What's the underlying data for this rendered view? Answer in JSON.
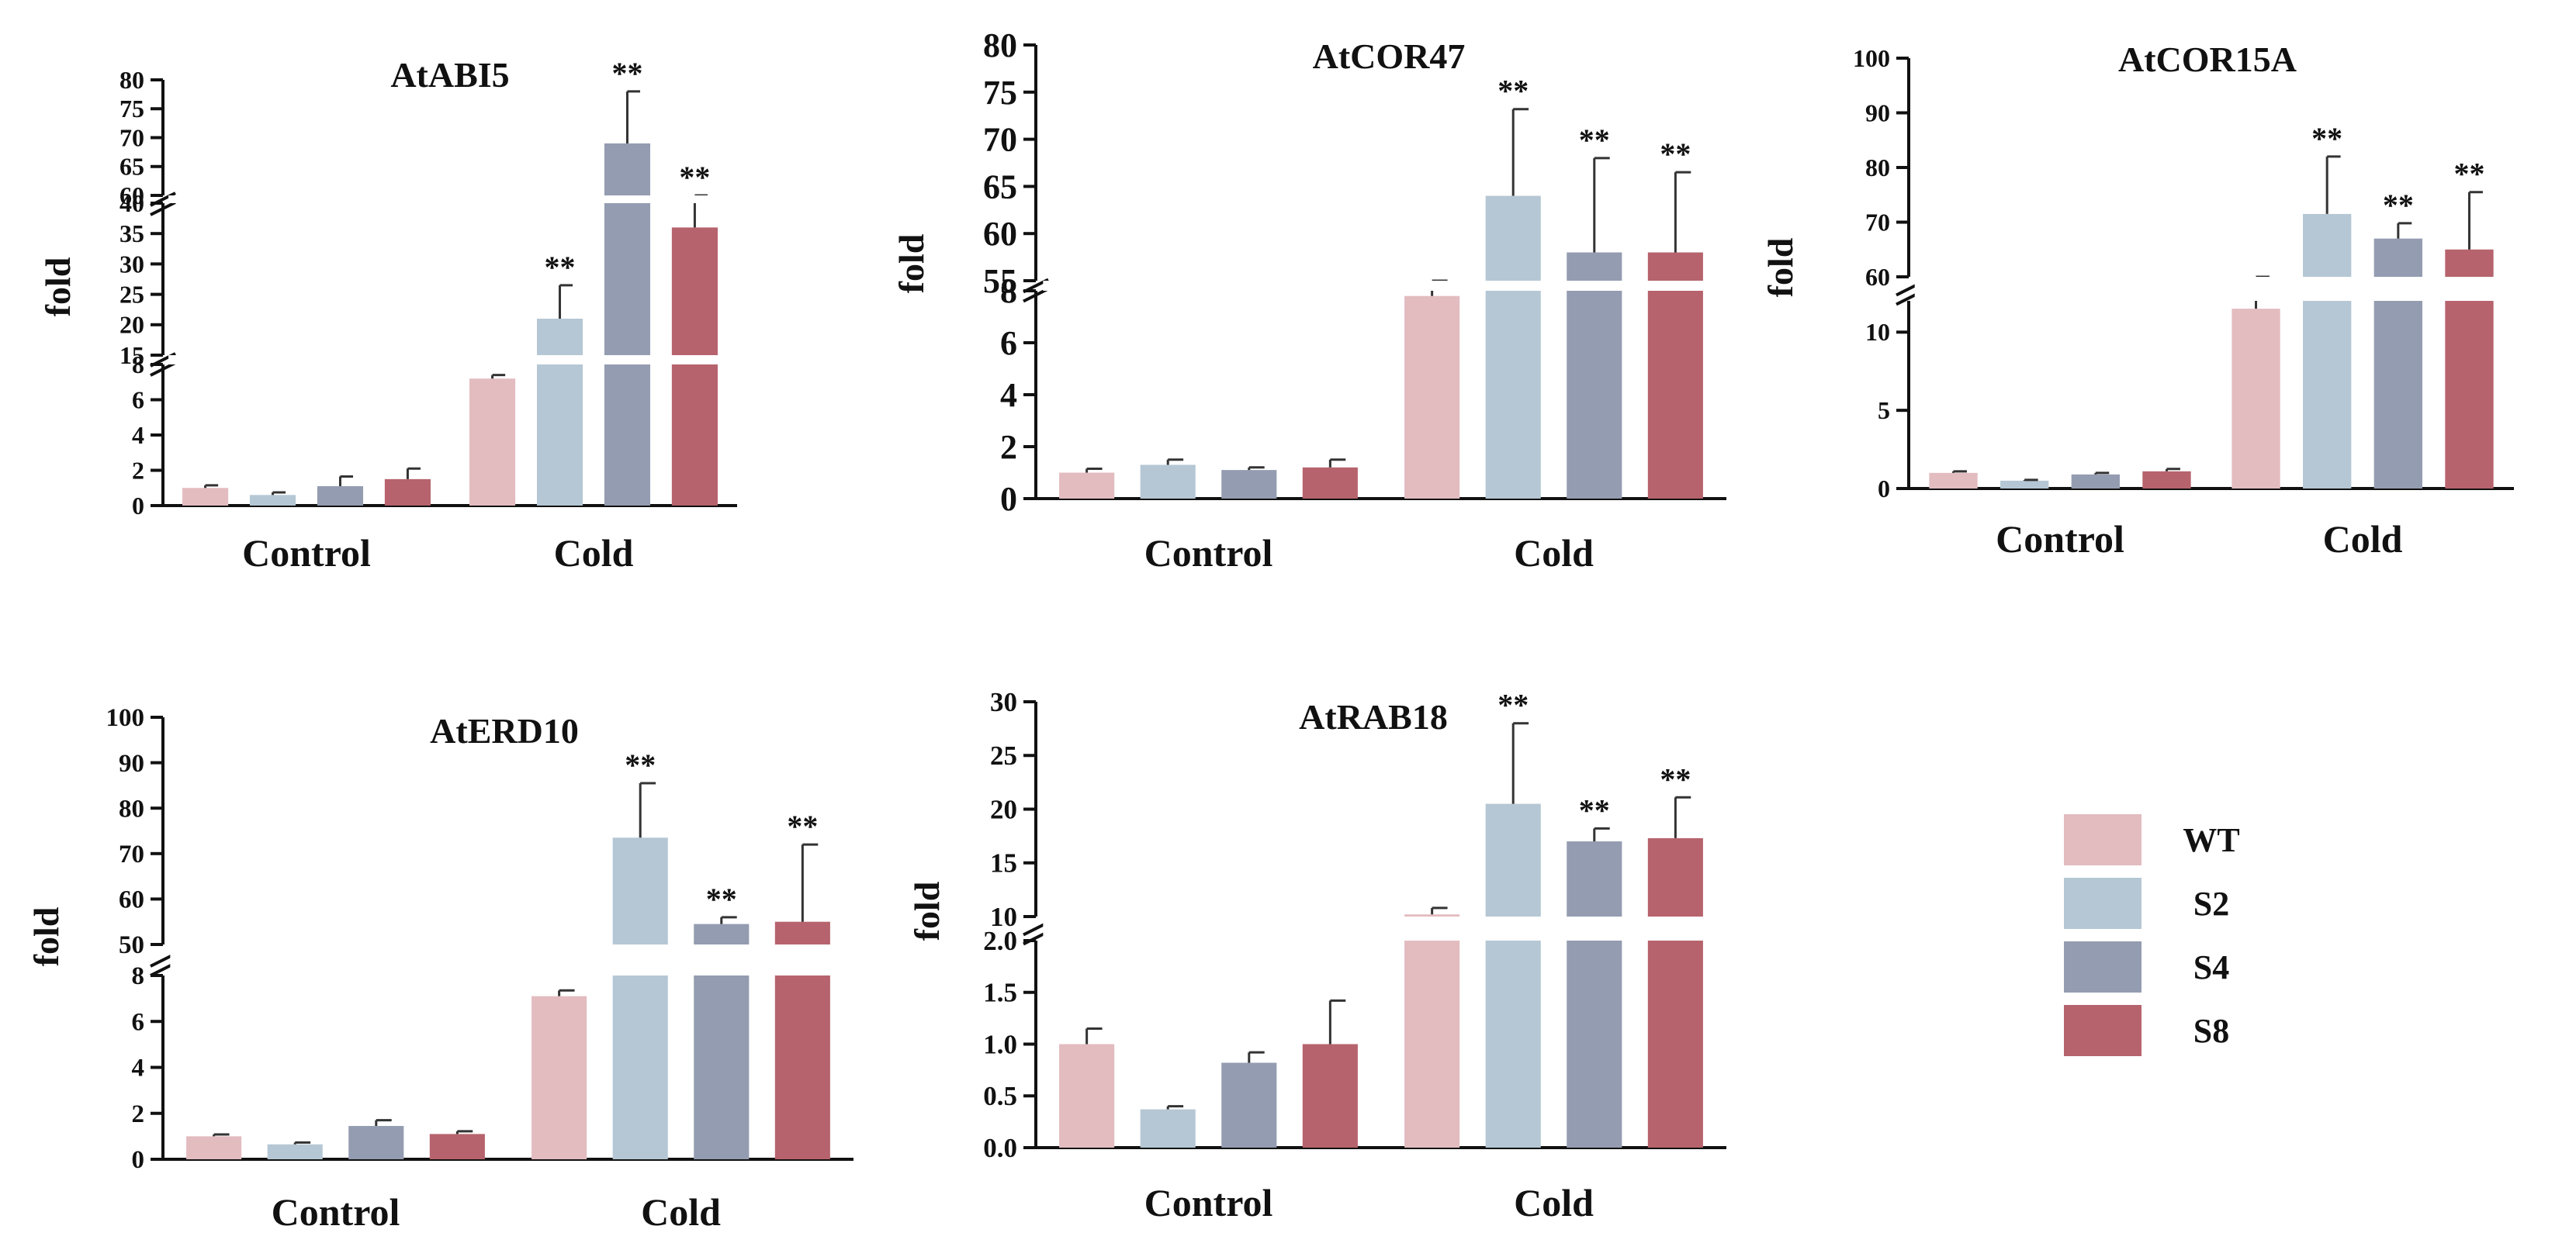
{
  "legend": [
    {
      "label": "WT",
      "color": "#e3bcc0"
    },
    {
      "label": "S2",
      "color": "#b5c7d4"
    },
    {
      "label": "S4",
      "color": "#949cb1"
    },
    {
      "label": "S8",
      "color": "#b6636d"
    }
  ],
  "significance_mark": "**",
  "y_axis_label": "fold",
  "chart_data": [
    {
      "type": "bar",
      "title": "AtABI5",
      "ylabel": "fold",
      "categories": [
        "Control",
        "Cold"
      ],
      "series": [
        {
          "name": "WT",
          "values": [
            1.0,
            7.2
          ],
          "errors": [
            0.15,
            0.2
          ]
        },
        {
          "name": "S2",
          "values": [
            0.6,
            21
          ],
          "errors": [
            0.15,
            5.5
          ]
        },
        {
          "name": "S4",
          "values": [
            1.1,
            69
          ],
          "errors": [
            0.55,
            9
          ]
        },
        {
          "name": "S8",
          "values": [
            1.5,
            36
          ],
          "errors": [
            0.6,
            4.5
          ]
        }
      ],
      "significant": [
        [
          false,
          false
        ],
        [
          false,
          true
        ],
        [
          false,
          true
        ],
        [
          false,
          true
        ]
      ],
      "segments": [
        {
          "range": [
            0,
            8
          ],
          "ticks": [
            0,
            2,
            4,
            6,
            8
          ]
        },
        {
          "range": [
            15,
            40
          ],
          "ticks": [
            15,
            20,
            25,
            30,
            35,
            40
          ]
        },
        {
          "range": [
            60,
            80
          ],
          "ticks": [
            60,
            65,
            70,
            75,
            80
          ]
        }
      ]
    },
    {
      "type": "bar",
      "title": "AtCOR47",
      "ylabel": "fold",
      "categories": [
        "Control",
        "Cold"
      ],
      "series": [
        {
          "name": "WT",
          "values": [
            1.0,
            7.8
          ],
          "errors": [
            0.15,
            0.6
          ]
        },
        {
          "name": "S2",
          "values": [
            1.3,
            64
          ],
          "errors": [
            0.2,
            9.2
          ]
        },
        {
          "name": "S4",
          "values": [
            1.1,
            58
          ],
          "errors": [
            0.1,
            10
          ]
        },
        {
          "name": "S8",
          "values": [
            1.2,
            58
          ],
          "errors": [
            0.3,
            8.5
          ]
        }
      ],
      "significant": [
        [
          false,
          false
        ],
        [
          false,
          true
        ],
        [
          false,
          true
        ],
        [
          false,
          true
        ]
      ],
      "segments": [
        {
          "range": [
            0,
            8
          ],
          "ticks": [
            0,
            2,
            4,
            6,
            8
          ]
        },
        {
          "range": [
            55,
            80
          ],
          "ticks": [
            55,
            60,
            65,
            70,
            75,
            80
          ]
        }
      ]
    },
    {
      "type": "bar",
      "title": "AtCOR15A",
      "ylabel": "fold",
      "categories": [
        "Control",
        "Cold"
      ],
      "series": [
        {
          "name": "WT",
          "values": [
            1.0,
            11.5
          ],
          "errors": [
            0.1,
            0.9
          ]
        },
        {
          "name": "S2",
          "values": [
            0.5,
            71.5
          ],
          "errors": [
            0.05,
            10.5
          ]
        },
        {
          "name": "S4",
          "values": [
            0.9,
            67
          ],
          "errors": [
            0.1,
            2.8
          ]
        },
        {
          "name": "S8",
          "values": [
            1.1,
            65
          ],
          "errors": [
            0.15,
            10.5
          ]
        }
      ],
      "significant": [
        [
          false,
          false
        ],
        [
          false,
          true
        ],
        [
          false,
          true
        ],
        [
          false,
          true
        ]
      ],
      "segments": [
        {
          "range": [
            0,
            12
          ],
          "ticks": [
            0,
            5,
            10
          ]
        },
        {
          "range": [
            60,
            100
          ],
          "ticks": [
            60,
            70,
            80,
            90,
            100
          ]
        }
      ]
    },
    {
      "type": "bar",
      "title": "AtERD10",
      "ylabel": "fold",
      "categories": [
        "Control",
        "Cold"
      ],
      "series": [
        {
          "name": "WT",
          "values": [
            1.0,
            7.1
          ],
          "errors": [
            0.08,
            0.25
          ]
        },
        {
          "name": "S2",
          "values": [
            0.65,
            73.5
          ],
          "errors": [
            0.08,
            12
          ]
        },
        {
          "name": "S4",
          "values": [
            1.45,
            54.5
          ],
          "errors": [
            0.25,
            1.5
          ]
        },
        {
          "name": "S8",
          "values": [
            1.1,
            55
          ],
          "errors": [
            0.12,
            17
          ]
        }
      ],
      "significant": [
        [
          false,
          false
        ],
        [
          false,
          true
        ],
        [
          false,
          true
        ],
        [
          false,
          true
        ]
      ],
      "segments": [
        {
          "range": [
            0,
            8
          ],
          "ticks": [
            0,
            2,
            4,
            6,
            8
          ]
        },
        {
          "range": [
            50,
            100
          ],
          "ticks": [
            50,
            60,
            70,
            80,
            90,
            100
          ]
        }
      ]
    },
    {
      "type": "bar",
      "title": "AtRAB18",
      "ylabel": "fold",
      "categories": [
        "Control",
        "Cold"
      ],
      "series": [
        {
          "name": "WT",
          "values": [
            1.0,
            10.2
          ],
          "errors": [
            0.15,
            0.6
          ]
        },
        {
          "name": "S2",
          "values": [
            0.37,
            20.5
          ],
          "errors": [
            0.03,
            7.5
          ]
        },
        {
          "name": "S4",
          "values": [
            0.82,
            17
          ],
          "errors": [
            0.1,
            1.2
          ]
        },
        {
          "name": "S8",
          "values": [
            1.0,
            17.3
          ],
          "errors": [
            0.42,
            3.8
          ]
        }
      ],
      "significant": [
        [
          false,
          false
        ],
        [
          false,
          true
        ],
        [
          false,
          true
        ],
        [
          false,
          true
        ]
      ],
      "segments": [
        {
          "range": [
            0,
            2
          ],
          "ticks": [
            0.0,
            0.5,
            1.0,
            1.5,
            2.0
          ]
        },
        {
          "range": [
            10,
            30
          ],
          "ticks": [
            10,
            15,
            20,
            25,
            30
          ]
        }
      ]
    }
  ]
}
